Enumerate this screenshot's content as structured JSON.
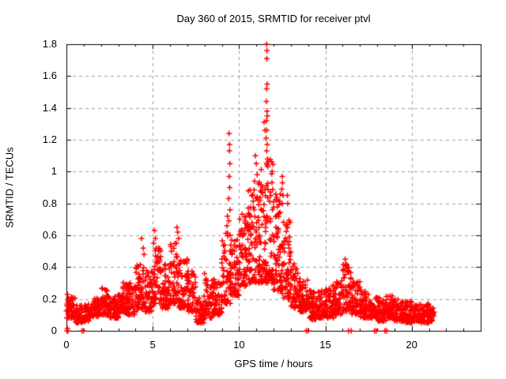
{
  "chart_data": {
    "type": "scatter",
    "title": "Day 360 of 2015, SRMTID for receiver ptvl",
    "xlabel": "GPS time / hours",
    "ylabel": "SRMTID / TECUs",
    "xlim": [
      0,
      24
    ],
    "ylim": [
      0,
      1.8
    ],
    "x_major_ticks": [
      0,
      5,
      10,
      15,
      20
    ],
    "x_minor_step": 1,
    "y_ticks": [
      {
        "v": 0.0,
        "label": "0"
      },
      {
        "v": 0.2,
        "label": "0.2"
      },
      {
        "v": 0.4,
        "label": "0.4"
      },
      {
        "v": 0.6,
        "label": "0.6"
      },
      {
        "v": 0.8,
        "label": "0.8"
      },
      {
        "v": 1.0,
        "label": "1"
      },
      {
        "v": 1.2,
        "label": "1.2"
      },
      {
        "v": 1.4,
        "label": "1.4"
      },
      {
        "v": 1.6,
        "label": "1.6"
      },
      {
        "v": 1.8,
        "label": "1.8"
      }
    ],
    "grid": true,
    "grid_color": "#9e9e9e",
    "border_color": "#000000",
    "background_color": "#ffffff",
    "marker": "plus",
    "marker_color": "#ff0000",
    "legend": "none",
    "seed": 42,
    "series": [
      {
        "name": "SRMTID",
        "note": "dense scatter read as per-half-hour envelope bands [t_start,t_end,y_low,y_high,n_points]",
        "bands": [
          [
            0.0,
            0.5,
            0.08,
            0.23,
            55
          ],
          [
            0.5,
            1.0,
            0.05,
            0.16,
            45
          ],
          [
            1.0,
            1.5,
            0.06,
            0.17,
            45
          ],
          [
            1.5,
            2.0,
            0.09,
            0.21,
            50
          ],
          [
            2.0,
            2.5,
            0.1,
            0.27,
            55
          ],
          [
            2.5,
            3.0,
            0.08,
            0.22,
            50
          ],
          [
            3.0,
            3.5,
            0.11,
            0.31,
            55
          ],
          [
            3.5,
            4.0,
            0.1,
            0.3,
            55
          ],
          [
            4.0,
            4.5,
            0.13,
            0.42,
            55
          ],
          [
            4.5,
            5.0,
            0.12,
            0.38,
            55
          ],
          [
            5.0,
            5.5,
            0.17,
            0.52,
            55
          ],
          [
            5.5,
            6.0,
            0.14,
            0.42,
            50
          ],
          [
            6.0,
            6.5,
            0.17,
            0.55,
            55
          ],
          [
            6.5,
            7.0,
            0.14,
            0.46,
            55
          ],
          [
            7.0,
            7.5,
            0.12,
            0.38,
            50
          ],
          [
            7.5,
            8.0,
            0.05,
            0.22,
            50
          ],
          [
            8.0,
            8.5,
            0.08,
            0.34,
            50
          ],
          [
            8.5,
            9.0,
            0.1,
            0.33,
            50
          ],
          [
            9.0,
            9.5,
            0.17,
            0.62,
            55
          ],
          [
            9.5,
            10.0,
            0.22,
            0.58,
            55
          ],
          [
            10.0,
            10.5,
            0.28,
            0.74,
            60
          ],
          [
            10.5,
            11.0,
            0.3,
            0.9,
            65
          ],
          [
            11.0,
            11.5,
            0.3,
            1.02,
            65
          ],
          [
            11.5,
            12.0,
            0.3,
            1.08,
            70
          ],
          [
            12.0,
            12.5,
            0.25,
            0.88,
            65
          ],
          [
            12.5,
            13.0,
            0.2,
            0.72,
            60
          ],
          [
            13.0,
            13.5,
            0.14,
            0.42,
            55
          ],
          [
            13.5,
            14.0,
            0.12,
            0.34,
            50
          ],
          [
            14.0,
            14.5,
            0.07,
            0.26,
            50
          ],
          [
            14.5,
            15.0,
            0.08,
            0.26,
            50
          ],
          [
            15.0,
            15.5,
            0.08,
            0.29,
            50
          ],
          [
            15.5,
            16.0,
            0.1,
            0.33,
            50
          ],
          [
            16.0,
            16.5,
            0.12,
            0.42,
            55
          ],
          [
            16.5,
            17.0,
            0.1,
            0.31,
            50
          ],
          [
            17.0,
            17.5,
            0.08,
            0.26,
            50
          ],
          [
            17.5,
            18.0,
            0.08,
            0.22,
            50
          ],
          [
            18.0,
            18.5,
            0.06,
            0.21,
            50
          ],
          [
            18.5,
            19.0,
            0.08,
            0.23,
            50
          ],
          [
            19.0,
            19.5,
            0.06,
            0.2,
            50
          ],
          [
            19.5,
            20.0,
            0.05,
            0.19,
            50
          ],
          [
            20.0,
            20.5,
            0.06,
            0.18,
            50
          ],
          [
            20.5,
            21.0,
            0.05,
            0.17,
            50
          ],
          [
            21.0,
            21.3,
            0.06,
            0.15,
            30
          ]
        ],
        "spikes": [
          [
            9.42,
            1.24
          ],
          [
            9.45,
            1.17
          ],
          [
            9.44,
            1.13
          ],
          [
            9.47,
            1.05
          ],
          [
            9.43,
            0.97
          ],
          [
            9.46,
            0.9
          ],
          [
            9.4,
            0.83
          ],
          [
            9.48,
            0.76
          ],
          [
            9.41,
            0.69
          ],
          [
            9.3,
            0.66
          ],
          [
            9.33,
            0.72
          ],
          [
            11.6,
            1.8
          ],
          [
            11.62,
            1.76
          ],
          [
            11.61,
            1.71
          ],
          [
            11.63,
            1.55
          ],
          [
            11.6,
            1.52
          ],
          [
            11.58,
            1.44
          ],
          [
            11.62,
            1.38
          ],
          [
            11.64,
            1.35
          ],
          [
            11.59,
            1.32
          ],
          [
            11.61,
            1.26
          ],
          [
            11.57,
            1.21
          ],
          [
            11.63,
            1.17
          ],
          [
            11.6,
            1.13
          ],
          [
            11.65,
            1.08
          ],
          [
            11.45,
            1.31
          ],
          [
            11.5,
            1.26
          ],
          [
            10.95,
            1.1
          ],
          [
            11.0,
            1.05
          ],
          [
            11.05,
            0.98
          ],
          [
            10.9,
            0.94
          ],
          [
            12.5,
            0.97
          ],
          [
            12.52,
            0.93
          ],
          [
            12.48,
            0.89
          ],
          [
            12.55,
            0.85
          ],
          [
            12.5,
            0.8
          ],
          [
            12.8,
            0.85
          ],
          [
            12.82,
            0.8
          ],
          [
            5.1,
            0.63
          ],
          [
            5.15,
            0.58
          ],
          [
            5.05,
            0.55
          ],
          [
            5.2,
            0.52
          ],
          [
            6.4,
            0.65
          ],
          [
            6.45,
            0.62
          ],
          [
            6.5,
            0.58
          ],
          [
            6.38,
            0.55
          ],
          [
            4.35,
            0.58
          ],
          [
            4.45,
            0.52
          ],
          [
            4.5,
            0.48
          ],
          [
            16.15,
            0.45
          ],
          [
            16.2,
            0.42
          ],
          [
            13.2,
            0.42
          ],
          [
            7.0,
            0.45
          ],
          [
            8.0,
            0.36
          ]
        ],
        "zeros": [
          [
            0.03,
            0.0
          ],
          [
            0.06,
            0.0
          ],
          [
            0.06,
            0.015
          ],
          [
            0.09,
            0.0
          ],
          [
            0.9,
            0.0
          ],
          [
            1.0,
            0.0
          ],
          [
            13.9,
            0.0
          ],
          [
            14.0,
            0.0
          ],
          [
            16.35,
            0.0
          ],
          [
            16.5,
            0.0
          ],
          [
            17.85,
            0.0
          ],
          [
            17.95,
            0.0
          ],
          [
            18.45,
            0.0
          ],
          [
            18.55,
            0.0
          ]
        ]
      }
    ]
  }
}
